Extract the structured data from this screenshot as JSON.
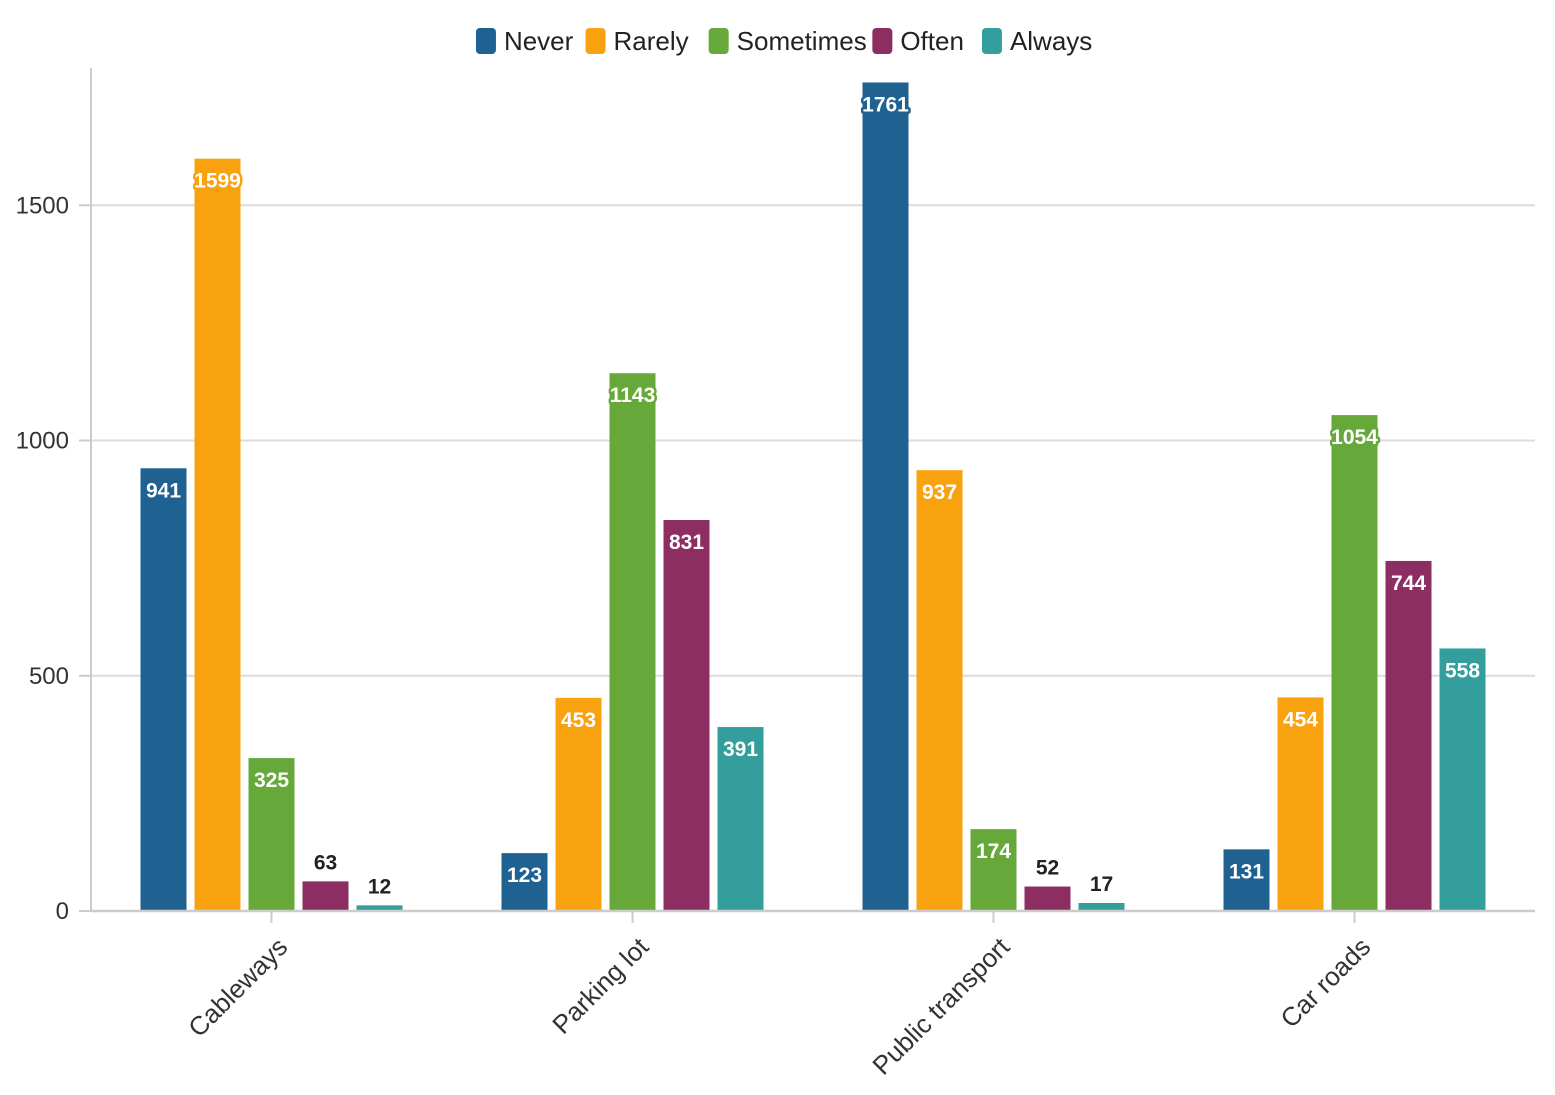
{
  "chart_data": {
    "type": "bar",
    "title": "",
    "xlabel": "",
    "ylabel": "",
    "categories": [
      "Cableways",
      "Parking lot",
      "Public transport",
      "Car roads"
    ],
    "series": [
      {
        "name": "Never",
        "color": "#1f6191",
        "values": [
          941,
          123,
          1761,
          131
        ]
      },
      {
        "name": "Rarely",
        "color": "#f9a20f",
        "values": [
          1599,
          453,
          937,
          454
        ]
      },
      {
        "name": "Sometimes",
        "color": "#67a83b",
        "values": [
          325,
          1143,
          174,
          1054
        ]
      },
      {
        "name": "Often",
        "color": "#8c2e62",
        "values": [
          63,
          831,
          52,
          744
        ]
      },
      {
        "name": "Always",
        "color": "#339e9c",
        "values": [
          12,
          391,
          17,
          558
        ]
      }
    ],
    "ylim": [
      0,
      1762
    ],
    "yticks": [
      0,
      500,
      1000,
      1500
    ],
    "grid": true,
    "legend_position": "top-center",
    "x_tick_rotation": "-45deg"
  }
}
